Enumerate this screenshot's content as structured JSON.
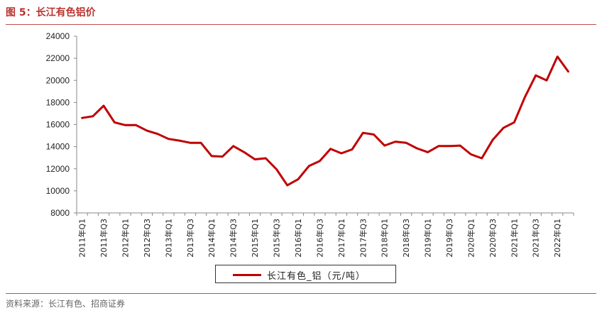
{
  "header": {
    "title": "图 5：长江有色铝价"
  },
  "footer": {
    "source": "资料来源：长江有色、招商证券"
  },
  "chart_data": {
    "type": "line",
    "title": "",
    "xlabel": "",
    "ylabel": "",
    "ylim": [
      8000,
      24000
    ],
    "yticks": [
      8000,
      10000,
      12000,
      14000,
      16000,
      18000,
      20000,
      22000,
      24000
    ],
    "grid": false,
    "legend_position": "bottom",
    "x_tick_labels": [
      "2011年Q1",
      "2011年Q3",
      "2012年Q1",
      "2012年Q3",
      "2013年Q1",
      "2013年Q3",
      "2014年Q1",
      "2014年Q3",
      "2015年Q1",
      "2015年Q3",
      "2016年Q1",
      "2016年Q3",
      "2017年Q1",
      "2017年Q3",
      "2018年Q1",
      "2018年Q3",
      "2019年Q1",
      "2019年Q3",
      "2020年Q1",
      "2020年Q3",
      "2021年Q1",
      "2021年Q3",
      "2022年Q1"
    ],
    "x": [
      "2011Q1",
      "2011Q2",
      "2011Q3",
      "2011Q4",
      "2012Q1",
      "2012Q2",
      "2012Q3",
      "2012Q4",
      "2013Q1",
      "2013Q2",
      "2013Q3",
      "2013Q4",
      "2014Q1",
      "2014Q2",
      "2014Q3",
      "2014Q4",
      "2015Q1",
      "2015Q2",
      "2015Q3",
      "2015Q4",
      "2016Q1",
      "2016Q2",
      "2016Q3",
      "2016Q4",
      "2017Q1",
      "2017Q2",
      "2017Q3",
      "2017Q4",
      "2018Q1",
      "2018Q2",
      "2018Q3",
      "2018Q4",
      "2019Q1",
      "2019Q2",
      "2019Q3",
      "2019Q4",
      "2020Q1",
      "2020Q2",
      "2020Q3",
      "2020Q4",
      "2021Q1",
      "2021Q2",
      "2021Q3",
      "2021Q4",
      "2022Q1",
      "2022Q2"
    ],
    "series": [
      {
        "name": "长江有色_铝（元/吨）",
        "color": "#c00000",
        "values": [
          16600,
          16750,
          17700,
          16200,
          15950,
          15950,
          15450,
          15150,
          14700,
          14550,
          14350,
          14350,
          13150,
          13100,
          14050,
          13500,
          12850,
          12950,
          11950,
          10500,
          11050,
          12250,
          12700,
          13800,
          13400,
          13750,
          15250,
          15100,
          14100,
          14450,
          14350,
          13850,
          13500,
          14050,
          14050,
          14100,
          13300,
          12950,
          14600,
          15700,
          16200,
          18500,
          20450,
          20000,
          22150,
          20800
        ]
      }
    ]
  }
}
